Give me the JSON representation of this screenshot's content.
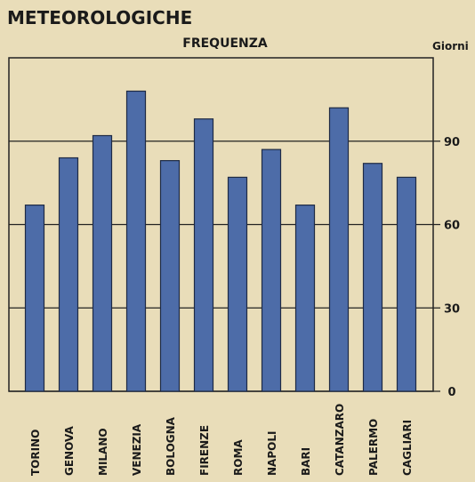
{
  "chart_data": {
    "type": "bar",
    "title": "METEOROLOGICHE",
    "subtitle": "FREQUENZA",
    "y_axis_label": "Giorni",
    "categories": [
      "TORINO",
      "GENOVA",
      "MILANO",
      "VENEZIA",
      "BOLOGNA",
      "FIRENZE",
      "ROMA",
      "NAPOLI",
      "BARI",
      "CATANZARO",
      "PALERMO",
      "CAGLIARI"
    ],
    "values": [
      67,
      84,
      92,
      108,
      83,
      98,
      77,
      87,
      67,
      102,
      82,
      77
    ],
    "color": "#4d6ca8",
    "ylim": [
      0,
      120
    ],
    "yticks": [
      0,
      30,
      60,
      90
    ],
    "grid": true
  }
}
